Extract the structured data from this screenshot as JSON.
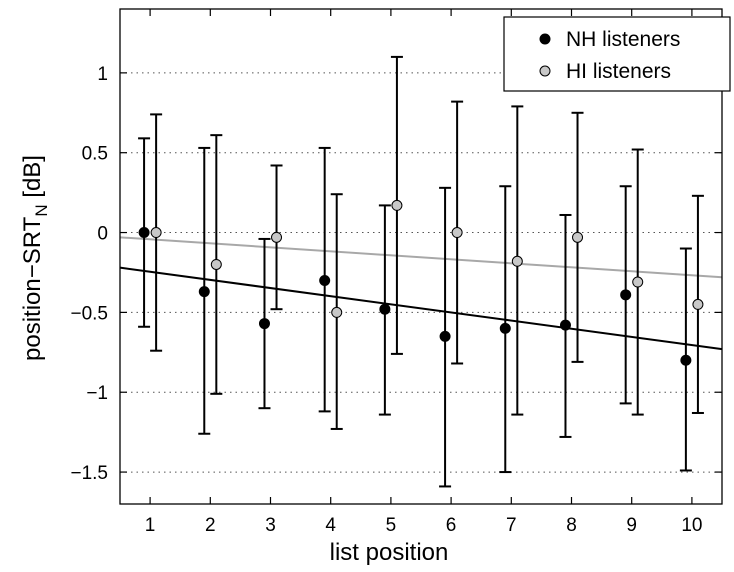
{
  "chart_data": {
    "type": "scatter",
    "xlabel": "list position",
    "ylabel": "position−SRT",
    "ylabel_subscript": "N",
    "ylabel_unit": " [dB]",
    "xlim": [
      0.5,
      10.5
    ],
    "ylim": [
      -1.7,
      1.4
    ],
    "x_ticks": [
      1,
      2,
      3,
      4,
      5,
      6,
      7,
      8,
      9,
      10
    ],
    "x_tick_labels": [
      "1",
      "2",
      "3",
      "4",
      "5",
      "6",
      "7",
      "8",
      "9",
      "10"
    ],
    "y_ticks": [
      -1.5,
      -1,
      -0.5,
      0,
      0.5,
      1
    ],
    "y_tick_labels": [
      "−1.5",
      "−1",
      "−0.5",
      "0",
      "0.5",
      "1"
    ],
    "grid": "horizontal dotted",
    "legend_position": "top-right",
    "series": [
      {
        "name": "NH listeners",
        "color": "#000000",
        "marker": "filled-circle",
        "x_offset": -0.1,
        "x": [
          1,
          2,
          3,
          4,
          5,
          6,
          7,
          8,
          9,
          10
        ],
        "y": [
          0.0,
          -0.37,
          -0.57,
          -0.3,
          -0.48,
          -0.65,
          -0.6,
          -0.58,
          -0.39,
          -0.8
        ],
        "err_low": [
          -0.59,
          -1.26,
          -1.1,
          -1.12,
          -1.14,
          -1.59,
          -1.5,
          -1.28,
          -1.07,
          -1.49
        ],
        "err_high": [
          0.59,
          0.53,
          -0.04,
          0.53,
          0.17,
          0.28,
          0.29,
          0.11,
          0.29,
          -0.1
        ],
        "fit_line": [
          [
            0.5,
            -0.22
          ],
          [
            10.5,
            -0.73
          ]
        ],
        "fit_color": "#000000"
      },
      {
        "name": "HI listeners",
        "color": "#c8c8c8",
        "marker": "circle-outlined",
        "x_offset": 0.1,
        "x": [
          1,
          2,
          3,
          4,
          5,
          6,
          7,
          8,
          9,
          10
        ],
        "y": [
          0.0,
          -0.2,
          -0.03,
          -0.5,
          0.17,
          0.0,
          -0.18,
          -0.03,
          -0.31,
          -0.45
        ],
        "err_low": [
          -0.74,
          -1.01,
          -0.48,
          -1.23,
          -0.76,
          -0.82,
          -1.14,
          -0.81,
          -1.14,
          -1.13
        ],
        "err_high": [
          0.74,
          0.61,
          0.42,
          0.24,
          1.1,
          0.82,
          0.79,
          0.75,
          0.52,
          0.23
        ],
        "fit_line": [
          [
            0.5,
            -0.03
          ],
          [
            10.5,
            -0.28
          ]
        ],
        "fit_color": "#a8a8a8"
      }
    ]
  }
}
